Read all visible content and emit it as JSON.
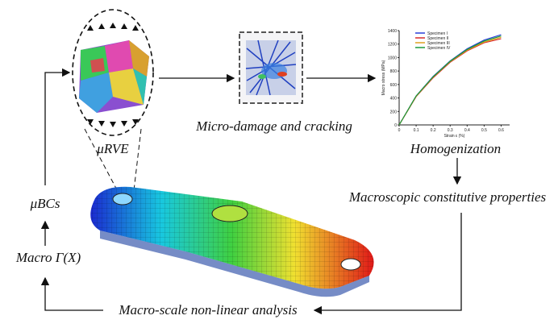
{
  "steps": {
    "rve": "μRVE",
    "micro": "Micro-damage and cracking",
    "homogenization": "Homogenization",
    "macro_properties": "Macroscopic constitutive properties",
    "macro_analysis": "Macro-scale non-linear analysis",
    "macro_gamma": "Macro Γ(X)",
    "bcs": "μBCs"
  },
  "plot": {
    "type": "line",
    "x_label": "Strain ε (%)",
    "y_label": "Macro stress (MPa)",
    "x": [
      0,
      0.1,
      0.2,
      0.3,
      0.4,
      0.5,
      0.6
    ],
    "series": [
      {
        "name": "Specimen I",
        "color": "#2a3fd8",
        "values": [
          0,
          430,
          720,
          950,
          1130,
          1260,
          1340
        ]
      },
      {
        "name": "Specimen II",
        "color": "#d82a2a",
        "values": [
          0,
          420,
          700,
          930,
          1100,
          1220,
          1280
        ]
      },
      {
        "name": "Specimen III",
        "color": "#e0a020",
        "values": [
          0,
          425,
          710,
          940,
          1110,
          1230,
          1300
        ]
      },
      {
        "name": "Specimen IV",
        "color": "#1a9a3a",
        "values": [
          0,
          430,
          715,
          945,
          1120,
          1245,
          1320
        ]
      }
    ],
    "xlim": [
      0,
      0.65
    ],
    "ylim": [
      0,
      1400
    ],
    "xticks": [
      0,
      0.1,
      0.2,
      0.3,
      0.4,
      0.5,
      0.6
    ],
    "yticks": [
      0,
      200,
      400,
      600,
      800,
      1000,
      1200,
      1400
    ]
  }
}
